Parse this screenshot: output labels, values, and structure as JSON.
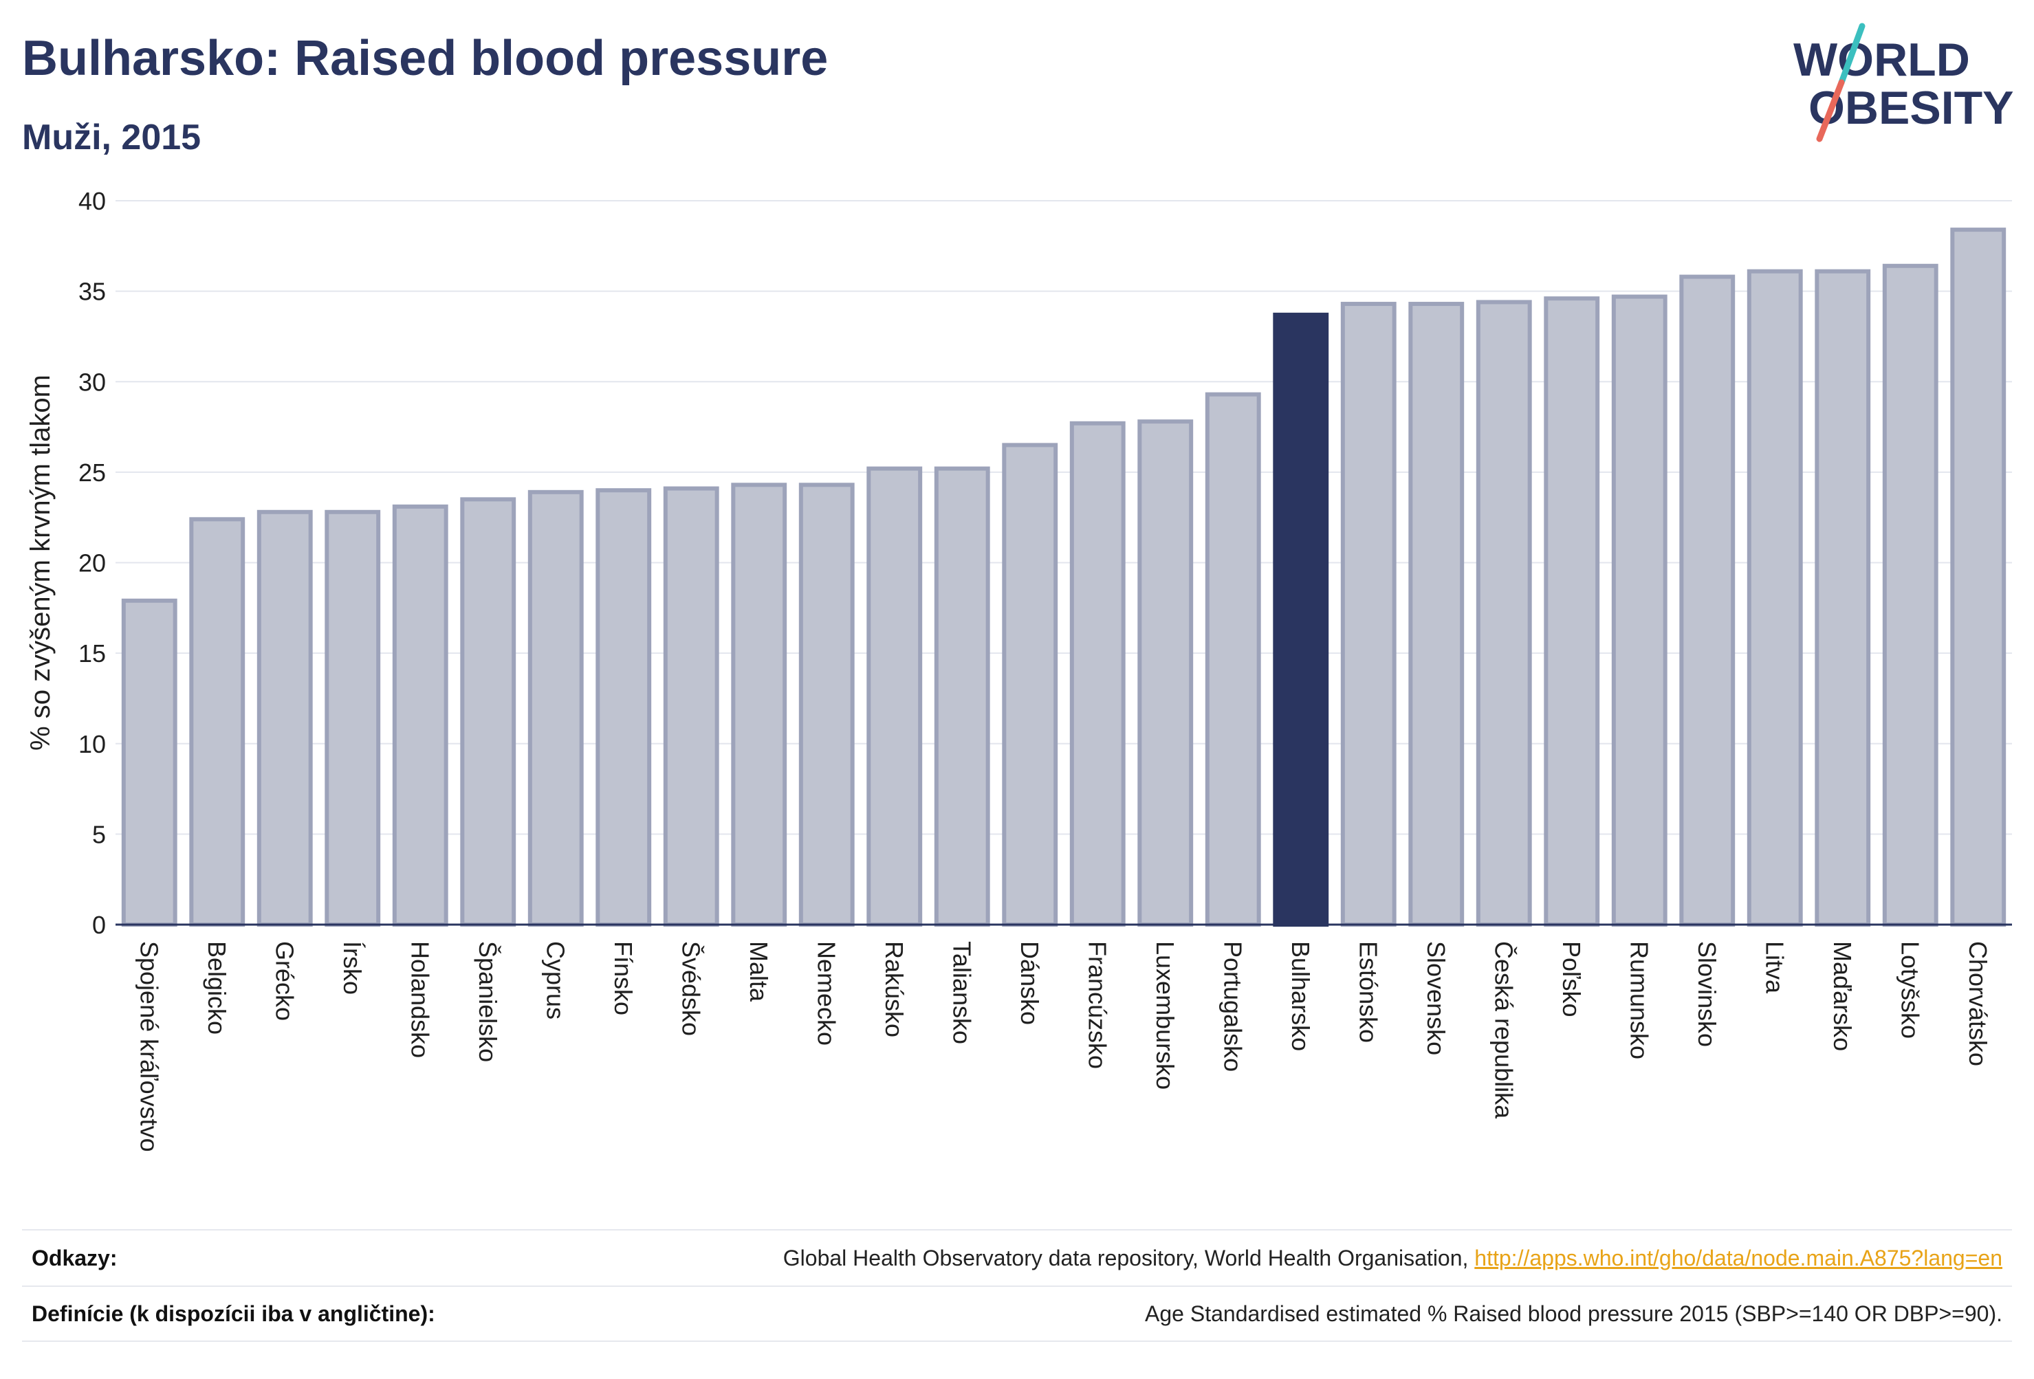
{
  "header": {
    "title": "Bulharsko: Raised blood pressure",
    "subtitle": "Muži, 2015"
  },
  "logo": {
    "line1": "WORLD",
    "line2": "OBESITY",
    "text_color": "#2a3560",
    "slash_color_top": "#3bbfbf",
    "slash_color_bottom": "#e8685a"
  },
  "colors": {
    "bar_fill": "#bfc3d0",
    "bar_stroke": "#9da3ba",
    "highlight": "#2a3560",
    "grid": "#e3e6ee",
    "axis": "#2a3560",
    "text": "#1f1f1f"
  },
  "chart_data": {
    "type": "bar",
    "title": "Bulharsko: Raised blood pressure",
    "subtitle": "Muži, 2015",
    "xlabel": "",
    "ylabel": "% so zvýšeným krvným tlakom",
    "ylim": [
      0,
      40
    ],
    "yticks": [
      0,
      5,
      10,
      15,
      20,
      25,
      30,
      35,
      40
    ],
    "grid": true,
    "highlight_category": "Bulharsko",
    "categories": [
      "Spojené kráľovstvo",
      "Belgicko",
      "Grécko",
      "Írsko",
      "Holandsko",
      "Španielsko",
      "Cyprus",
      "Fínsko",
      "Švédsko",
      "Malta",
      "Nemecko",
      "Rakúsko",
      "Taliansko",
      "Dánsko",
      "Francúzsko",
      "Luxembursko",
      "Portugalsko",
      "Bulharsko",
      "Estónsko",
      "Slovensko",
      "Česká republika",
      "Poľsko",
      "Rumunsko",
      "Slovinsko",
      "Litva",
      "Maďarsko",
      "Lotyšsko",
      "Chorvátsko"
    ],
    "values": [
      17.9,
      22.4,
      22.8,
      22.8,
      23.1,
      23.5,
      23.9,
      24.0,
      24.1,
      24.3,
      24.3,
      25.2,
      25.2,
      26.5,
      27.7,
      27.8,
      29.3,
      33.7,
      34.3,
      34.3,
      34.4,
      34.6,
      34.7,
      35.8,
      36.1,
      36.1,
      36.4,
      38.4
    ]
  },
  "footer": {
    "references_label": "Odkazy:",
    "references_text": "Global Health Observatory data repository, World Health Organisation,",
    "references_link": "http://apps.who.int/gho/data/node.main.A875?lang=en",
    "definitions_label": "Definície (k dispozícii iba v angličtine):",
    "definitions_text": "Age Standardised estimated % Raised blood pressure 2015 (SBP>=140 OR DBP>=90)."
  }
}
